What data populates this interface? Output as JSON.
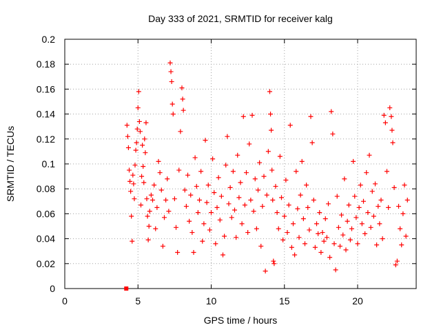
{
  "chart_data": {
    "type": "scatter",
    "title": "Day 333 of 2021, SRMTID for receiver kalg",
    "xlabel": "GPS time / hours",
    "ylabel": "SRMTID / TECUs",
    "xlim": [
      0,
      24
    ],
    "ylim": [
      0,
      0.2
    ],
    "x_ticks": [
      0,
      5,
      10,
      15,
      20
    ],
    "x_tick_labels": [
      "0",
      "5",
      "10",
      "15",
      "20"
    ],
    "y_ticks": [
      0,
      0.02,
      0.04,
      0.06,
      0.08,
      0.1,
      0.12,
      0.14,
      0.16,
      0.18,
      0.2
    ],
    "y_tick_labels": [
      "0",
      "0.02",
      "0.04",
      "0.06",
      "0.08",
      "0.1",
      "0.12",
      "0.14",
      "0.16",
      "0.18",
      "0.2"
    ],
    "grid": true,
    "marker": "+",
    "color": "#ff0000",
    "zero_marker": {
      "x": 4.2,
      "y": 0.0
    },
    "series": [
      {
        "points": [
          [
            4.25,
            0.131
          ],
          [
            4.3,
            0.122
          ],
          [
            4.35,
            0.113
          ],
          [
            4.4,
            0.095
          ],
          [
            4.45,
            0.086
          ],
          [
            4.5,
            0.078
          ],
          [
            4.55,
            0.058
          ],
          [
            4.6,
            0.038
          ],
          [
            4.65,
            0.091
          ],
          [
            4.7,
            0.084
          ],
          [
            4.75,
            0.072
          ],
          [
            4.8,
            0.099
          ],
          [
            4.85,
            0.111
          ],
          [
            4.9,
            0.117
          ],
          [
            4.95,
            0.128
          ],
          [
            5.0,
            0.145
          ],
          [
            5.05,
            0.158
          ],
          [
            5.1,
            0.134
          ],
          [
            5.15,
            0.126
          ],
          [
            5.2,
            0.067
          ],
          [
            5.25,
            0.09
          ],
          [
            5.3,
            0.115
          ],
          [
            5.35,
            0.098
          ],
          [
            5.4,
            0.085
          ],
          [
            5.45,
            0.12
          ],
          [
            5.5,
            0.109
          ],
          [
            5.55,
            0.133
          ],
          [
            5.6,
            0.072
          ],
          [
            5.65,
            0.058
          ],
          [
            5.7,
            0.039
          ],
          [
            5.75,
            0.05
          ],
          [
            5.8,
            0.062
          ],
          [
            5.9,
            0.075
          ],
          [
            6.0,
            0.071
          ],
          [
            6.1,
            0.083
          ],
          [
            6.2,
            0.048
          ],
          [
            6.3,
            0.065
          ],
          [
            6.4,
            0.102
          ],
          [
            6.5,
            0.093
          ],
          [
            6.6,
            0.079
          ],
          [
            6.7,
            0.034
          ],
          [
            6.8,
            0.057
          ],
          [
            6.9,
            0.071
          ],
          [
            7.0,
            0.088
          ],
          [
            7.1,
            0.062
          ],
          [
            7.2,
            0.181
          ],
          [
            7.25,
            0.174
          ],
          [
            7.3,
            0.166
          ],
          [
            7.35,
            0.148
          ],
          [
            7.4,
            0.14
          ],
          [
            7.5,
            0.072
          ],
          [
            7.6,
            0.049
          ],
          [
            7.7,
            0.029
          ],
          [
            7.8,
            0.095
          ],
          [
            7.9,
            0.126
          ],
          [
            8.0,
            0.161
          ],
          [
            8.05,
            0.152
          ],
          [
            8.1,
            0.143
          ],
          [
            8.2,
            0.079
          ],
          [
            8.3,
            0.066
          ],
          [
            8.4,
            0.091
          ],
          [
            8.5,
            0.054
          ],
          [
            8.6,
            0.075
          ],
          [
            8.7,
            0.045
          ],
          [
            8.8,
            0.029
          ],
          [
            8.9,
            0.105
          ],
          [
            9.0,
            0.082
          ],
          [
            9.1,
            0.061
          ],
          [
            9.2,
            0.071
          ],
          [
            9.3,
            0.094
          ],
          [
            9.4,
            0.038
          ],
          [
            9.5,
            0.052
          ],
          [
            9.6,
            0.119
          ],
          [
            9.7,
            0.069
          ],
          [
            9.8,
            0.083
          ],
          [
            9.9,
            0.047
          ],
          [
            10.0,
            0.061
          ],
          [
            10.1,
            0.104
          ],
          [
            10.2,
            0.077
          ],
          [
            10.3,
            0.036
          ],
          [
            10.4,
            0.065
          ],
          [
            10.5,
            0.089
          ],
          [
            10.6,
            0.055
          ],
          [
            10.7,
            0.074
          ],
          [
            10.8,
            0.027
          ],
          [
            10.9,
            0.042
          ],
          [
            11.0,
            0.099
          ],
          [
            11.1,
            0.122
          ],
          [
            11.2,
            0.068
          ],
          [
            11.3,
            0.081
          ],
          [
            11.4,
            0.057
          ],
          [
            11.5,
            0.094
          ],
          [
            11.6,
            0.063
          ],
          [
            11.7,
            0.041
          ],
          [
            11.8,
            0.107
          ],
          [
            11.9,
            0.073
          ],
          [
            12.0,
            0.085
          ],
          [
            12.1,
            0.052
          ],
          [
            12.2,
            0.138
          ],
          [
            12.3,
            0.067
          ],
          [
            12.4,
            0.093
          ],
          [
            12.5,
            0.045
          ],
          [
            12.6,
            0.116
          ],
          [
            12.7,
            0.071
          ],
          [
            12.8,
            0.139
          ],
          [
            12.9,
            0.062
          ],
          [
            13.0,
            0.088
          ],
          [
            13.1,
            0.048
          ],
          [
            13.2,
            0.079
          ],
          [
            13.3,
            0.101
          ],
          [
            13.4,
            0.034
          ],
          [
            13.5,
            0.066
          ],
          [
            13.6,
            0.09
          ],
          [
            13.7,
            0.014
          ],
          [
            13.8,
            0.075
          ],
          [
            13.9,
            0.11
          ],
          [
            14.0,
            0.158
          ],
          [
            14.05,
            0.14
          ],
          [
            14.1,
            0.127
          ],
          [
            14.15,
            0.095
          ],
          [
            14.2,
            0.071
          ],
          [
            14.25,
            0.022
          ],
          [
            14.3,
            0.02
          ],
          [
            14.4,
            0.082
          ],
          [
            14.5,
            0.061
          ],
          [
            14.6,
            0.048
          ],
          [
            14.7,
            0.106
          ],
          [
            14.8,
            0.073
          ],
          [
            14.9,
            0.039
          ],
          [
            15.0,
            0.058
          ],
          [
            15.1,
            0.087
          ],
          [
            15.2,
            0.045
          ],
          [
            15.3,
            0.067
          ],
          [
            15.4,
            0.131
          ],
          [
            15.5,
            0.033
          ],
          [
            15.6,
            0.052
          ],
          [
            15.7,
            0.027
          ],
          [
            15.8,
            0.094
          ],
          [
            15.9,
            0.064
          ],
          [
            16.0,
            0.041
          ],
          [
            16.1,
            0.075
          ],
          [
            16.2,
            0.102
          ],
          [
            16.3,
            0.056
          ],
          [
            16.4,
            0.036
          ],
          [
            16.5,
            0.083
          ],
          [
            16.6,
            0.065
          ],
          [
            16.7,
            0.047
          ],
          [
            16.8,
            0.138
          ],
          [
            16.9,
            0.117
          ],
          [
            17.0,
            0.071
          ],
          [
            17.1,
            0.033
          ],
          [
            17.2,
            0.052
          ],
          [
            17.3,
            0.044
          ],
          [
            17.4,
            0.061
          ],
          [
            17.5,
            0.029
          ],
          [
            17.6,
            0.045
          ],
          [
            17.7,
            0.038
          ],
          [
            17.8,
            0.056
          ],
          [
            17.9,
            0.041
          ],
          [
            18.0,
            0.068
          ],
          [
            18.1,
            0.025
          ],
          [
            18.2,
            0.142
          ],
          [
            18.3,
            0.124
          ],
          [
            18.4,
            0.036
          ],
          [
            18.5,
            0.015
          ],
          [
            18.6,
            0.074
          ],
          [
            18.7,
            0.049
          ],
          [
            18.8,
            0.034
          ],
          [
            18.9,
            0.059
          ],
          [
            19.0,
            0.043
          ],
          [
            19.1,
            0.088
          ],
          [
            19.2,
            0.031
          ],
          [
            19.3,
            0.054
          ],
          [
            19.4,
            0.067
          ],
          [
            19.5,
            0.039
          ],
          [
            19.6,
            0.048
          ],
          [
            19.7,
            0.102
          ],
          [
            19.8,
            0.074
          ],
          [
            19.9,
            0.057
          ],
          [
            20.0,
            0.036
          ],
          [
            20.1,
            0.065
          ],
          [
            20.2,
            0.083
          ],
          [
            20.3,
            0.052
          ],
          [
            20.4,
            0.07
          ],
          [
            20.5,
            0.044
          ],
          [
            20.6,
            0.093
          ],
          [
            20.7,
            0.061
          ],
          [
            20.8,
            0.107
          ],
          [
            20.9,
            0.049
          ],
          [
            21.0,
            0.078
          ],
          [
            21.1,
            0.058
          ],
          [
            21.2,
            0.084
          ],
          [
            21.3,
            0.035
          ],
          [
            21.4,
            0.066
          ],
          [
            21.5,
            0.052
          ],
          [
            21.6,
            0.071
          ],
          [
            21.7,
            0.04
          ],
          [
            21.8,
            0.139
          ],
          [
            21.9,
            0.133
          ],
          [
            22.0,
            0.094
          ],
          [
            22.1,
            0.065
          ],
          [
            22.2,
            0.145
          ],
          [
            22.3,
            0.138
          ],
          [
            22.35,
            0.127
          ],
          [
            22.4,
            0.117
          ],
          [
            22.5,
            0.081
          ],
          [
            22.6,
            0.019
          ],
          [
            22.7,
            0.022
          ],
          [
            22.8,
            0.066
          ],
          [
            22.9,
            0.048
          ],
          [
            23.0,
            0.035
          ],
          [
            23.1,
            0.06
          ],
          [
            23.2,
            0.083
          ],
          [
            23.3,
            0.042
          ],
          [
            23.4,
            0.071
          ]
        ]
      }
    ]
  }
}
